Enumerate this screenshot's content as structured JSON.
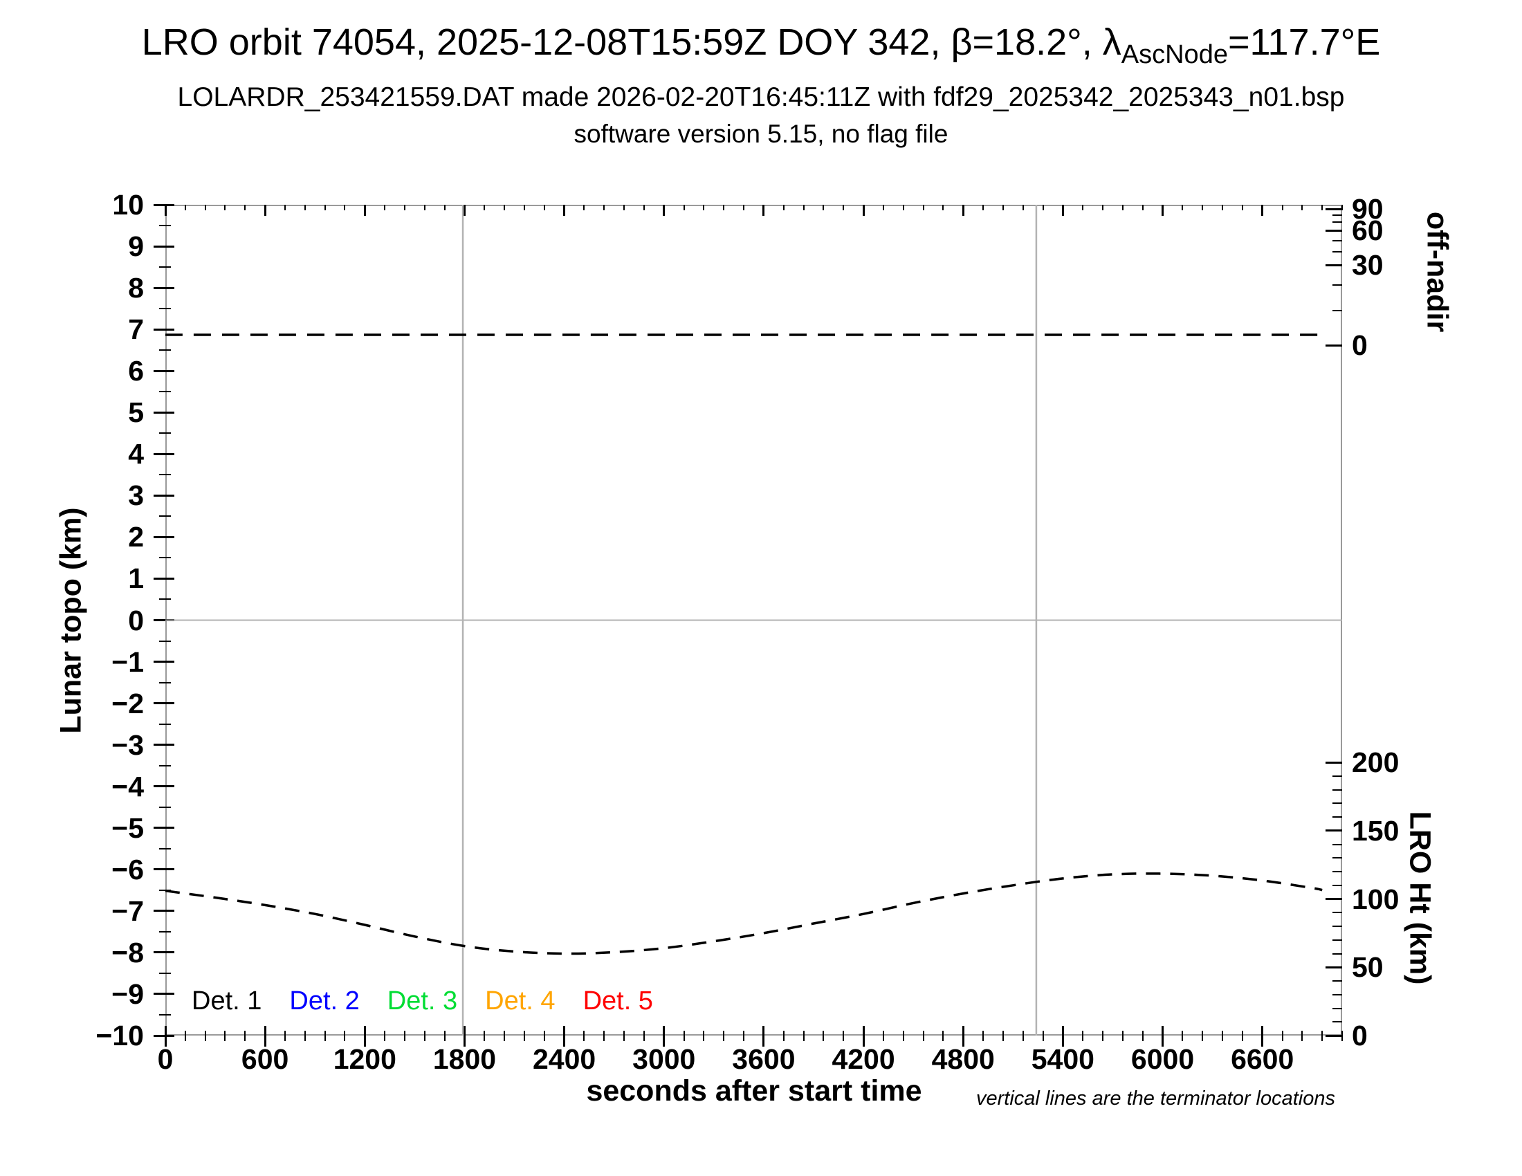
{
  "header": {
    "title_prefix": "LRO orbit 74054, 2025-12-08T15:59Z DOY 342, β=18.2°, λ",
    "title_sub": "AscNode",
    "title_suffix": "=117.7°E",
    "subtitle": "LOLARDR_253421559.DAT made 2026-02-20T16:45:11Z with fdf29_2025342_2025343_n01.bsp",
    "subtitle2": "software version 5.15, no flag file"
  },
  "axes": {
    "x": {
      "label": "seconds after start time",
      "min": 0,
      "max": 7080,
      "major_ticks": [
        0,
        600,
        1200,
        1800,
        2400,
        3000,
        3600,
        4200,
        4800,
        5400,
        6000,
        6600
      ],
      "minor_step": 120
    },
    "y_left": {
      "label": "Lunar topo (km)",
      "min": -10,
      "max": 10,
      "major_ticks": [
        10,
        9,
        8,
        7,
        6,
        5,
        4,
        3,
        2,
        1,
        0,
        -1,
        -2,
        -3,
        -4,
        -5,
        -6,
        -7,
        -8,
        -9,
        -10
      ],
      "minor_step": 0.5
    },
    "y_right_top": {
      "label": "off-nadir",
      "major_ticks": [
        90,
        60,
        30,
        0
      ],
      "minor_ticks": [
        80,
        70,
        50,
        40,
        20,
        10
      ]
    },
    "y_right_bottom": {
      "label": "LRO Ht (km)",
      "min": 0,
      "max": 200,
      "major_ticks": [
        200,
        150,
        100,
        50,
        0
      ],
      "minor_step": 10
    }
  },
  "legend": [
    {
      "label": "Det. 1",
      "color": "#000000"
    },
    {
      "label": "Det. 2",
      "color": "#0000ff"
    },
    {
      "label": "Det. 3",
      "color": "#00dd33"
    },
    {
      "label": "Det. 4",
      "color": "#ffa500"
    },
    {
      "label": "Det. 5",
      "color": "#ff0000"
    }
  ],
  "note": "vertical lines are the terminator locations",
  "chart_data": {
    "type": "line",
    "title": "LRO orbit 74054, 2025-12-08T15:59Z DOY 342, β=18.2°, λAscNode=117.7°E",
    "xlabel": "seconds after start time",
    "ylabel_left": "Lunar topo (km)",
    "ylabel_right_top": "off-nadir",
    "ylabel_right_bottom": "LRO Ht (km)",
    "xlim": [
      0,
      7080
    ],
    "ylim_left": [
      -10,
      10
    ],
    "ylim_right_bottom": [
      0,
      200
    ],
    "grid": "zero-line and terminator verticals only",
    "legend_position": "bottom-left inside plot",
    "zero_line_y": 0,
    "terminators_sec": [
      1790,
      5240
    ],
    "series": [
      {
        "name": "off-nadir angle (deg)",
        "axis": "off_nadir",
        "style": "dashed",
        "color": "#000000",
        "points": [
          [
            0,
            3
          ],
          [
            6960,
            3
          ]
        ]
      },
      {
        "name": "LRO height (km)",
        "axis": "lro_ht",
        "style": "dashed",
        "color": "#000000",
        "points": [
          [
            0,
            106
          ],
          [
            300,
            101
          ],
          [
            600,
            95.5
          ],
          [
            900,
            89
          ],
          [
            1200,
            81
          ],
          [
            1500,
            72.5
          ],
          [
            1800,
            65.5
          ],
          [
            2100,
            61.5
          ],
          [
            2400,
            60
          ],
          [
            2700,
            61
          ],
          [
            3000,
            64
          ],
          [
            3300,
            69
          ],
          [
            3600,
            75
          ],
          [
            3900,
            82
          ],
          [
            4200,
            89
          ],
          [
            4500,
            97
          ],
          [
            4800,
            104
          ],
          [
            5100,
            110
          ],
          [
            5400,
            115
          ],
          [
            5700,
            118
          ],
          [
            6000,
            118.5
          ],
          [
            6300,
            117
          ],
          [
            6600,
            113.5
          ],
          [
            6900,
            108
          ],
          [
            6960,
            106.5
          ]
        ]
      }
    ]
  }
}
